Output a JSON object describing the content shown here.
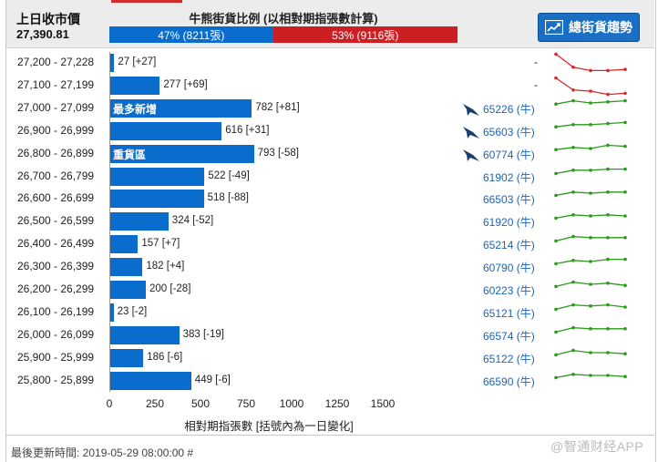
{
  "header": {
    "prev_close_label": "上日收市價",
    "prev_close_value": "27,390.81",
    "ratio_title": "牛熊街貨比例 (以相對期指張數計算)",
    "bull_label": "47% (8211張)",
    "bear_label": "53% (9116張)",
    "bull_pct": 47,
    "trend_button": "總街貨趨勢",
    "colors": {
      "bull": "#0a6ccd",
      "bear": "#cc1f24",
      "green": "#2a9a1a",
      "red": "#d42a2a",
      "link": "#1e63b5"
    }
  },
  "chart_data": {
    "type": "bar",
    "orientation": "horizontal",
    "xlabel": "相對期指張數 [括號內為一日變化]",
    "xlim": [
      0,
      1500
    ],
    "xticks": [
      "0",
      "250",
      "500",
      "750",
      "1000",
      "1250",
      "1500"
    ],
    "rows": [
      {
        "range": "27,200 - 27,228",
        "value": 27,
        "label": "27 [+27]",
        "tag": "",
        "contract": "",
        "hk": false,
        "trend": "red"
      },
      {
        "range": "27,100 - 27,199",
        "value": 277,
        "label": "277 [+69]",
        "tag": "",
        "contract": "",
        "hk": false,
        "trend": "red"
      },
      {
        "range": "27,000 - 27,099",
        "value": 782,
        "label": "782 [+81]",
        "tag": "最多新增",
        "contract": "65226 (牛)",
        "hk": true,
        "trend": "green"
      },
      {
        "range": "26,900 - 26,999",
        "value": 616,
        "label": "616 [+31]",
        "tag": "",
        "contract": "65603 (牛)",
        "hk": true,
        "trend": "green"
      },
      {
        "range": "26,800 - 26,899",
        "value": 793,
        "label": "793 [-58]",
        "tag": "重貨區",
        "contract": "60774 (牛)",
        "hk": true,
        "trend": "green"
      },
      {
        "range": "26,700 - 26,799",
        "value": 522,
        "label": "522 [-49]",
        "tag": "",
        "contract": "61902 (牛)",
        "hk": false,
        "trend": "green"
      },
      {
        "range": "26,600 - 26,699",
        "value": 518,
        "label": "518 [-88]",
        "tag": "",
        "contract": "66503 (牛)",
        "hk": false,
        "trend": "green"
      },
      {
        "range": "26,500 - 26,599",
        "value": 324,
        "label": "324 [-52]",
        "tag": "",
        "contract": "61920 (牛)",
        "hk": false,
        "trend": "green"
      },
      {
        "range": "26,400 - 26,499",
        "value": 157,
        "label": "157 [+7]",
        "tag": "",
        "contract": "65214 (牛)",
        "hk": false,
        "trend": "green"
      },
      {
        "range": "26,300 - 26,399",
        "value": 182,
        "label": "182 [+4]",
        "tag": "",
        "contract": "60790 (牛)",
        "hk": false,
        "trend": "green"
      },
      {
        "range": "26,200 - 26,299",
        "value": 200,
        "label": "200 [-28]",
        "tag": "",
        "contract": "60223 (牛)",
        "hk": false,
        "trend": "green"
      },
      {
        "range": "26,100 - 26,199",
        "value": 23,
        "label": "23 [-2]",
        "tag": "",
        "contract": "65121 (牛)",
        "hk": false,
        "trend": "green"
      },
      {
        "range": "26,000 - 26,099",
        "value": 383,
        "label": "383 [-19]",
        "tag": "",
        "contract": "66574 (牛)",
        "hk": false,
        "trend": "green"
      },
      {
        "range": "25,900 - 25,999",
        "value": 186,
        "label": "186 [-6]",
        "tag": "",
        "contract": "65122 (牛)",
        "hk": false,
        "trend": "green"
      },
      {
        "range": "25,800 - 25,899",
        "value": 449,
        "label": "449 [-6]",
        "tag": "",
        "contract": "66590 (牛)",
        "hk": false,
        "trend": "green"
      }
    ],
    "sparklines": [
      [
        9,
        3,
        1.5,
        1.5,
        2
      ],
      [
        8.5,
        3,
        2.5,
        1,
        1.5
      ],
      [
        7,
        8.5,
        7.5,
        8,
        8.5
      ],
      [
        7,
        8,
        8,
        8.5,
        9
      ],
      [
        7,
        8,
        7.5,
        9,
        8.5
      ],
      [
        6.5,
        8,
        8,
        8.5,
        8.5
      ],
      [
        6.5,
        8,
        7.5,
        8,
        8
      ],
      [
        6.5,
        8,
        7.5,
        8,
        7.5
      ],
      [
        6.5,
        8.5,
        8,
        8,
        8
      ],
      [
        6.5,
        8,
        7.5,
        8.5,
        8.5
      ],
      [
        6.5,
        8.5,
        7.5,
        8,
        7
      ],
      [
        6.5,
        8.5,
        8,
        8.5,
        7.5
      ],
      [
        6.5,
        8.5,
        8,
        8,
        8
      ],
      [
        6.5,
        8.5,
        7.5,
        7.5,
        7
      ],
      [
        6.5,
        8,
        7.5,
        7.5,
        7
      ]
    ]
  },
  "footer": {
    "updated": "最後更新時間: 2019-05-29 08:00:00 #"
  },
  "watermark": "@智通财经APP"
}
